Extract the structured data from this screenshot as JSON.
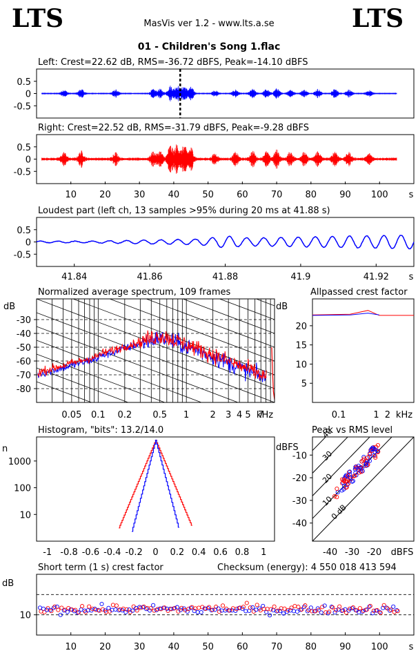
{
  "header": {
    "logo_left": "LTS",
    "logo_right": "LTS",
    "app_title": "MasVis ver 1.2 - www.lts.a.se",
    "file_title": "01 - Children's Song 1.flac"
  },
  "colors": {
    "left": "#0000ff",
    "right": "#ff0000",
    "axis": "#000000",
    "grid": "#000000"
  },
  "chart_data": [
    {
      "type": "line",
      "title": "Left: Crest=22.62 dB, RMS=-36.72 dBFS, Peak=-14.10 dBFS",
      "series": [
        {
          "name": "Left",
          "color": "#0000ff"
        }
      ],
      "y_ticks": [
        "0.5",
        "0",
        "-0.5"
      ],
      "ylim": [
        -1,
        1
      ],
      "xlim": [
        0,
        110
      ],
      "marker_x": 41.88
    },
    {
      "type": "line",
      "title": "Right: Crest=22.52 dB, RMS=-31.79 dBFS, Peak=-9.28 dBFS",
      "series": [
        {
          "name": "Right",
          "color": "#ff0000"
        }
      ],
      "y_ticks": [
        "0.5",
        "0",
        "-0.5"
      ],
      "x_ticks": [
        "10",
        "20",
        "30",
        "40",
        "50",
        "60",
        "70",
        "80",
        "90",
        "100"
      ],
      "x_unit": "s",
      "ylim": [
        -1,
        1
      ],
      "xlim": [
        0,
        110
      ]
    },
    {
      "type": "line",
      "title": "Loudest part (left  ch, 13 samples >95% during 20 ms at 41.88 s)",
      "y_ticks": [
        "0.5",
        "0",
        "-0.5"
      ],
      "x_ticks": [
        "41.84",
        "41.86",
        "41.88",
        "41.9",
        "41.92"
      ],
      "x_unit": "s",
      "xlim": [
        41.83,
        41.93
      ],
      "ylim": [
        -1,
        1
      ]
    },
    {
      "type": "line",
      "title": "Normalized average spectrum, 109 frames",
      "ylabel": "dB",
      "y_ticks": [
        "-30",
        "-40",
        "-50",
        "-60",
        "-70",
        "-80"
      ],
      "x_ticks": [
        "0.05",
        "0.1",
        "0.2",
        "0.5",
        "1",
        "2",
        "3",
        "4",
        "5",
        "7"
      ],
      "x_unit": "kHz",
      "x_scale": "log",
      "ylim": [
        -90,
        -15
      ]
    },
    {
      "type": "line",
      "title": "Allpassed crest factor",
      "ylabel": "dB",
      "y_ticks": [
        "20",
        "15",
        "10",
        "5"
      ],
      "x_ticks": [
        "0.1",
        "1",
        "2"
      ],
      "x_unit": "kHz",
      "x_scale": "log",
      "ylim": [
        0,
        27
      ],
      "series": [
        {
          "color": "#ff0000",
          "x": [
            0.02,
            0.2,
            0.6,
            1.2,
            3.0,
            10.0
          ],
          "y": [
            22.8,
            23.0,
            24.0,
            22.7,
            22.7,
            22.7
          ]
        },
        {
          "color": "#0000ff",
          "x": [
            0.02,
            0.2,
            0.6,
            1.2
          ],
          "y": [
            22.7,
            22.8,
            23.3,
            22.8
          ]
        }
      ]
    },
    {
      "type": "bar",
      "title": "Histogram, \"bits\": 13.2/14.0",
      "ylabel": "n",
      "y_ticks": [
        "1000",
        "100",
        "10"
      ],
      "y_scale": "log",
      "x_ticks": [
        "-1",
        "-0.8",
        "-0.6",
        "-0.4",
        "-0.2",
        "0",
        "0.2",
        "0.4",
        "0.6",
        "0.8",
        "1"
      ],
      "xlim": [
        -1.1,
        1.1
      ]
    },
    {
      "type": "scatter",
      "title": "Peak vs RMS level",
      "ylabel": "dBFS",
      "xlabel": "dBFS",
      "y_ticks": [
        "-10",
        "-20",
        "-30",
        "-40"
      ],
      "x_ticks": [
        "-40",
        "-30",
        "-20"
      ],
      "xlim": [
        -48,
        -2
      ],
      "ylim": [
        -48,
        -2
      ],
      "diagonal_labels": [
        "40",
        "30",
        "20",
        "10",
        "0 dB"
      ]
    },
    {
      "type": "scatter",
      "title": "Short term (1 s) crest factor",
      "ylabel": "dB",
      "y_ticks": [
        "10"
      ],
      "x_ticks": [
        "10",
        "20",
        "30",
        "40",
        "50",
        "60",
        "70",
        "80",
        "90",
        "100"
      ],
      "x_unit": "s",
      "xlim": [
        0,
        110
      ],
      "ylim": [
        0,
        30
      ],
      "annotation": "Checksum (energy):   4 550 018 413 594"
    }
  ]
}
